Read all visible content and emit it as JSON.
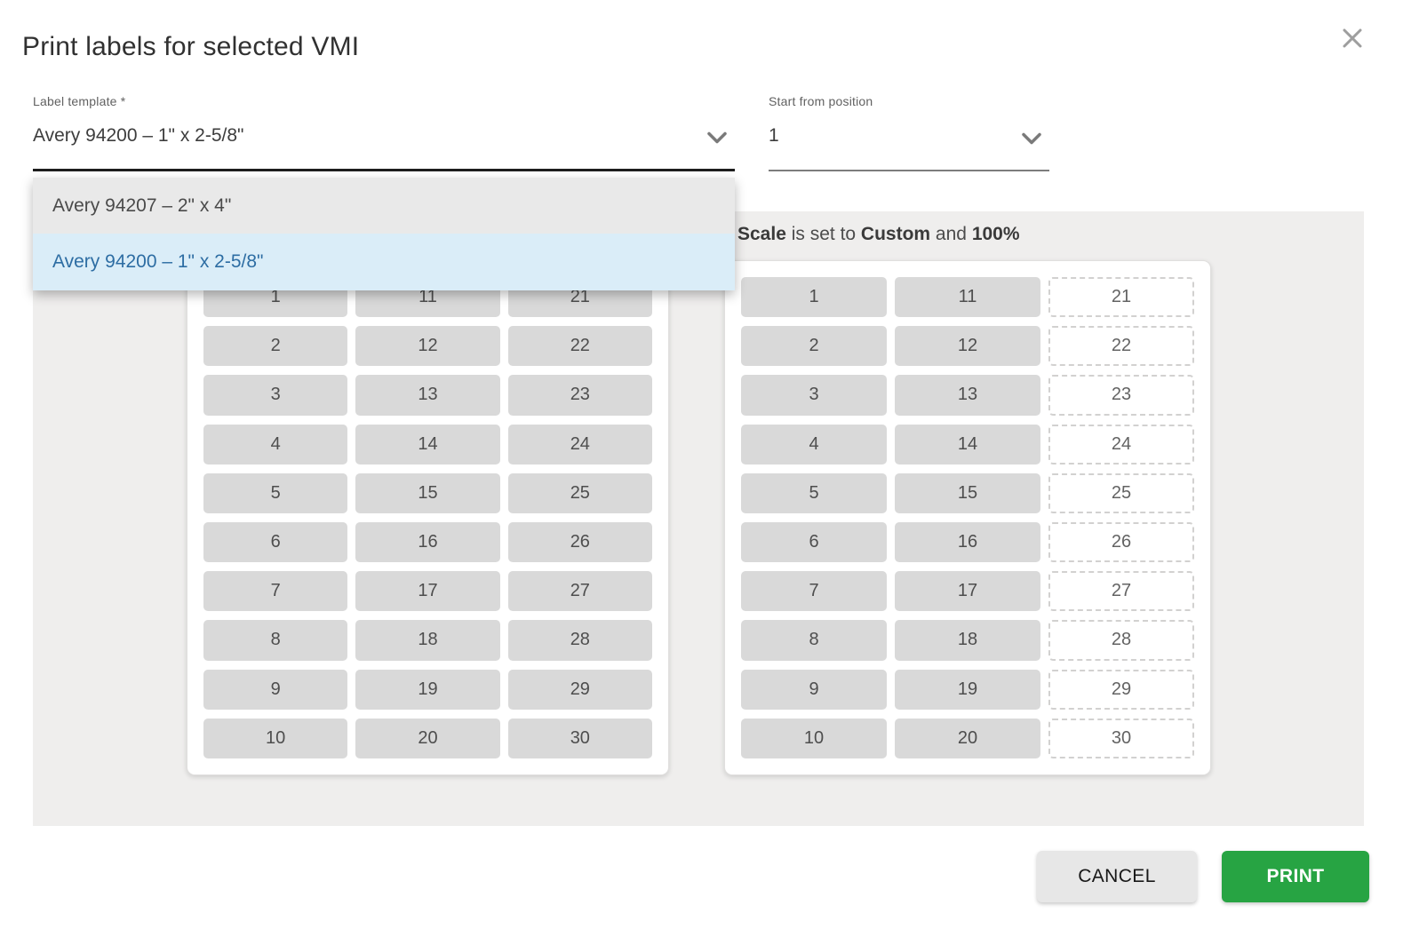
{
  "modal": {
    "title": "Print labels for selected VMI"
  },
  "fields": {
    "label_template": {
      "label": "Label template *",
      "value": "Avery 94200 – 1\" x 2-5/8\""
    },
    "start_position": {
      "label": "Start from position",
      "value": "1"
    }
  },
  "dropdown": {
    "options": [
      {
        "label": "Avery 94207 – 2\" x 4\"",
        "selected": false
      },
      {
        "label": "Avery 94200 – 1\" x 2-5/8\"",
        "selected": true
      }
    ]
  },
  "preview": {
    "scale_note_segments": [
      {
        "text": "Scale",
        "bold": true
      },
      {
        "text": " is set to ",
        "bold": false
      },
      {
        "text": "Custom",
        "bold": true
      },
      {
        "text": " and ",
        "bold": false
      },
      {
        "text": "100%",
        "bold": true
      }
    ],
    "sheets": [
      {
        "name": "template-preview",
        "cells": [
          1,
          2,
          3,
          4,
          5,
          6,
          7,
          8,
          9,
          10,
          11,
          12,
          13,
          14,
          15,
          16,
          17,
          18,
          19,
          20,
          21,
          22,
          23,
          24,
          25,
          26,
          27,
          28,
          29,
          30
        ],
        "dashed_cells": []
      },
      {
        "name": "position-preview",
        "cells": [
          1,
          2,
          3,
          4,
          5,
          6,
          7,
          8,
          9,
          10,
          11,
          12,
          13,
          14,
          15,
          16,
          17,
          18,
          19,
          20,
          21,
          22,
          23,
          24,
          25,
          26,
          27,
          28,
          29,
          30
        ],
        "dashed_cells": [
          21,
          22,
          23,
          24,
          25,
          26,
          27,
          28,
          29,
          30
        ]
      }
    ]
  },
  "buttons": {
    "cancel": "CANCEL",
    "print": "PRINT"
  },
  "colors": {
    "print_button_green": "#27a443",
    "selected_option_bg": "#daedf8",
    "selected_option_text": "#2d6da3",
    "cell_gray": "#d9d9d9",
    "panel_bg": "#efeeed",
    "focused_underline": "#1e1e1e"
  }
}
